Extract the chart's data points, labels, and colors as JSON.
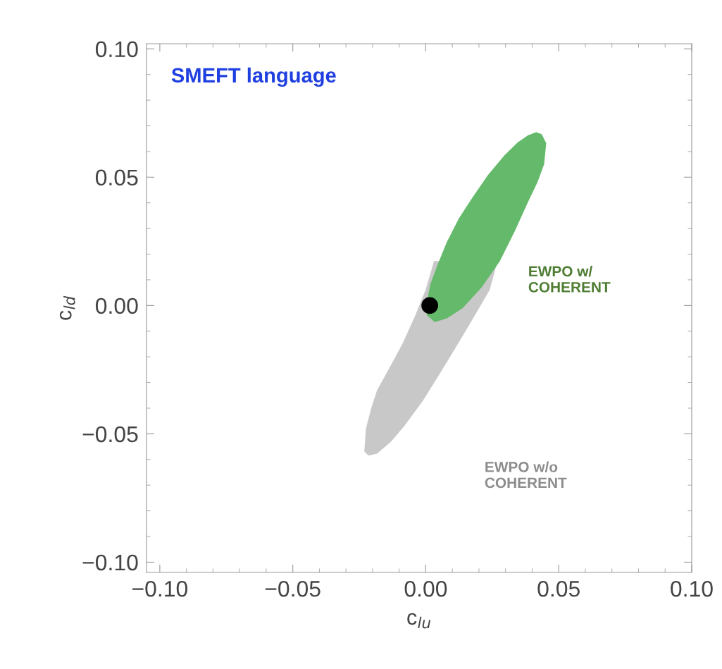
{
  "chart_data": {
    "type": "area",
    "title": "SMEFT language",
    "xlabel": "c$_{lu}$",
    "ylabel": "c$_{ld}$",
    "xlim": [
      -0.105,
      0.1
    ],
    "ylim": [
      -0.104,
      0.102
    ],
    "xticks": [
      {
        "value": -0.1,
        "label": "−0.10"
      },
      {
        "value": -0.05,
        "label": "−0.05"
      },
      {
        "value": 0,
        "label": "0.00"
      },
      {
        "value": 0.05,
        "label": "0.05"
      },
      {
        "value": 0.1,
        "label": "0.10"
      }
    ],
    "yticks": [
      {
        "value": -0.1,
        "label": "−0.10"
      },
      {
        "value": -0.05,
        "label": "−0.05"
      },
      {
        "value": 0,
        "label": "0.00"
      },
      {
        "value": 0.05,
        "label": "0.05"
      },
      {
        "value": 0.1,
        "label": "0.10"
      }
    ],
    "grid": false,
    "legend": false,
    "series": [
      {
        "name": "EWPO w/o\nCOHERENT",
        "color": "#c8c8c8",
        "x": [
          -0.0231,
          -0.0225,
          -0.0205,
          -0.0183,
          -0.0135,
          -0.0087,
          -0.004,
          0.0,
          0.0031,
          0.027,
          0.024,
          0.0175,
          0.0115,
          0.0052,
          -0.001,
          -0.0079,
          -0.013,
          -0.0183,
          -0.0215
        ],
        "values": [
          -0.0569,
          -0.048,
          -0.04,
          -0.033,
          -0.024,
          -0.0148,
          -0.004,
          0.0063,
          0.0173,
          0.0173,
          0.006,
          -0.0055,
          -0.016,
          -0.0267,
          -0.037,
          -0.0467,
          -0.053,
          -0.0577,
          -0.0585
        ]
      },
      {
        "name": "EWPO w/\nCOHERENT",
        "color": "#64ba6a",
        "x": [
          0.0436,
          0.0453,
          0.0445,
          0.042,
          0.0384,
          0.0335,
          0.0279,
          0.021,
          0.0139,
          0.008,
          0.0034,
          0.0004,
          0.0005,
          0.0017,
          0.0045,
          0.0079,
          0.0125,
          0.0175,
          0.0235,
          0.0296,
          0.0345,
          0.0384,
          0.0415
        ],
        "values": [
          0.0668,
          0.0632,
          0.055,
          0.048,
          0.0402,
          0.029,
          0.0173,
          0.007,
          -0.001,
          -0.005,
          -0.0065,
          -0.0038,
          0.002,
          0.0082,
          0.016,
          0.0247,
          0.034,
          0.042,
          0.051,
          0.0585,
          0.0635,
          0.0663,
          0.0675
        ]
      },
      {
        "type": "scatter",
        "color": "#000000",
        "marker": "circle",
        "x": [
          0.0015
        ],
        "values": [
          0.0
        ]
      }
    ]
  }
}
